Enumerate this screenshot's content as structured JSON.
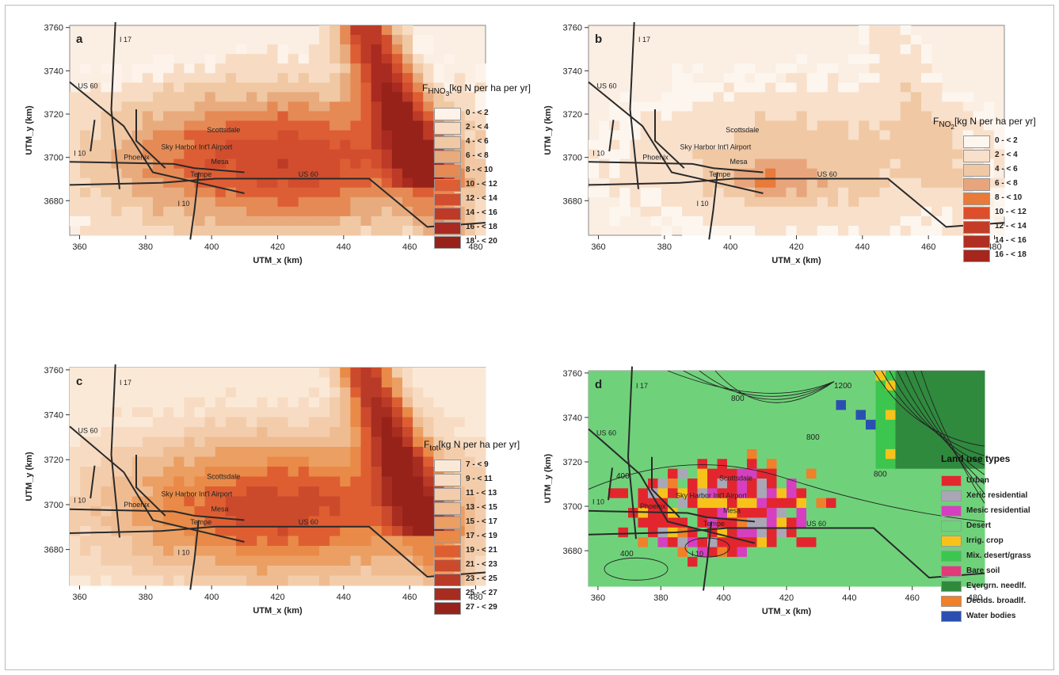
{
  "panels": [
    {
      "id": "a",
      "label": "a",
      "xlabel": "UTM_x (km)",
      "ylabel": "UTM_y (km)",
      "xticks": [
        "360",
        "380",
        "400",
        "420",
        "440",
        "460",
        "480"
      ],
      "yticks": [
        "3760",
        "3740",
        "3720",
        "3700",
        "3680"
      ],
      "legend_title_html": "F<sub>HNO<sub>3</sub></sub>[kg N per ha per yr]",
      "legend_items": [
        "0 - < 2",
        "2 - < 4",
        "4 - < 6",
        "6 - < 8",
        "8 - < 10",
        "10 - < 12",
        "12 - < 14",
        "14 - < 16",
        "16 - < 18",
        "18 - < 20"
      ],
      "legend_colors": [
        "#fdf3ea",
        "#f7dcc3",
        "#f0c8a4",
        "#e8ab7e",
        "#e58a55",
        "#dd5e34",
        "#d24d2e",
        "#bd3a26",
        "#a82a20",
        "#97221a"
      ]
    },
    {
      "id": "b",
      "label": "b",
      "xlabel": "UTM_x (km)",
      "ylabel": "UTM_y (km)",
      "xticks": [
        "360",
        "380",
        "400",
        "420",
        "440",
        "460",
        "480"
      ],
      "yticks": [
        "3760",
        "3740",
        "3720",
        "3700",
        "3680"
      ],
      "legend_title_html": "F<sub>NO<sub>2</sub></sub>[kg N per ha per yr]",
      "legend_items": [
        "0 - < 2",
        "2 - < 4",
        "4 - < 6",
        "6 - < 8",
        "8 - < 10",
        "10 - < 12",
        "12 - < 14",
        "14 - < 16",
        "16 - < 18"
      ],
      "legend_colors": [
        "#fdf6ef",
        "#f8e0cb",
        "#f0c8a4",
        "#e8a57c",
        "#e87a3a",
        "#de4e2a",
        "#c43c28",
        "#b12e22",
        "#a5261d"
      ]
    },
    {
      "id": "c",
      "label": "c",
      "xlabel": "UTM_x (km)",
      "ylabel": "UTM_y (km)",
      "xticks": [
        "360",
        "380",
        "400",
        "420",
        "440",
        "460",
        "480"
      ],
      "yticks": [
        "3760",
        "3740",
        "3720",
        "3700",
        "3680"
      ],
      "legend_title_html": "F<sub>tot</sub>[kg N per ha per yr]",
      "legend_items": [
        "7 - < 9",
        "9 - < 11",
        "11 - < 13",
        "13 - < 15",
        "15 - < 17",
        "17 - < 19",
        "19 - < 21",
        "21 - < 23",
        "23 - < 25",
        "25 - < 27",
        "27 - < 29"
      ],
      "legend_colors": [
        "#fbe9d8",
        "#f7dcc3",
        "#f3cdab",
        "#efbc92",
        "#ec9f62",
        "#e98a48",
        "#de5e32",
        "#cc4a2c",
        "#b93a27",
        "#a82d21",
        "#97221a"
      ]
    },
    {
      "id": "d",
      "label": "d",
      "xlabel": "UTM_x (km)",
      "ylabel": "UTM_y (km)",
      "xticks": [
        "360",
        "380",
        "400",
        "420",
        "440",
        "460",
        "480"
      ],
      "yticks": [
        "3760",
        "3740",
        "3720",
        "3700",
        "3680"
      ],
      "legend_title_html": "Land use types",
      "legend_items": [
        "Urban",
        "Xeric residential",
        "Mesic residential",
        "Desert",
        "Irrig. crop",
        "Mix. desert/grass",
        "Bare soil",
        "Evergrn. needlf.",
        "Decids. broadlf.",
        "Water bodies"
      ],
      "legend_colors": [
        "#e3262d",
        "#a9a6b6",
        "#d63fbf",
        "#6fd27a",
        "#f7c31a",
        "#3cc64f",
        "#df3a7a",
        "#2f8a3d",
        "#f08029",
        "#2b4fb0"
      ],
      "contour_labels": [
        "800",
        "1200",
        "400",
        "800",
        "800",
        "400"
      ]
    }
  ],
  "map_labels": {
    "roads": [
      "I 17",
      "US 60",
      "I 10",
      "US 60",
      "I 10"
    ],
    "places": [
      "Scottsdale",
      "Sky Harbor Int'l Airport",
      "Phoenix",
      "Mesa",
      "Tempe"
    ]
  }
}
